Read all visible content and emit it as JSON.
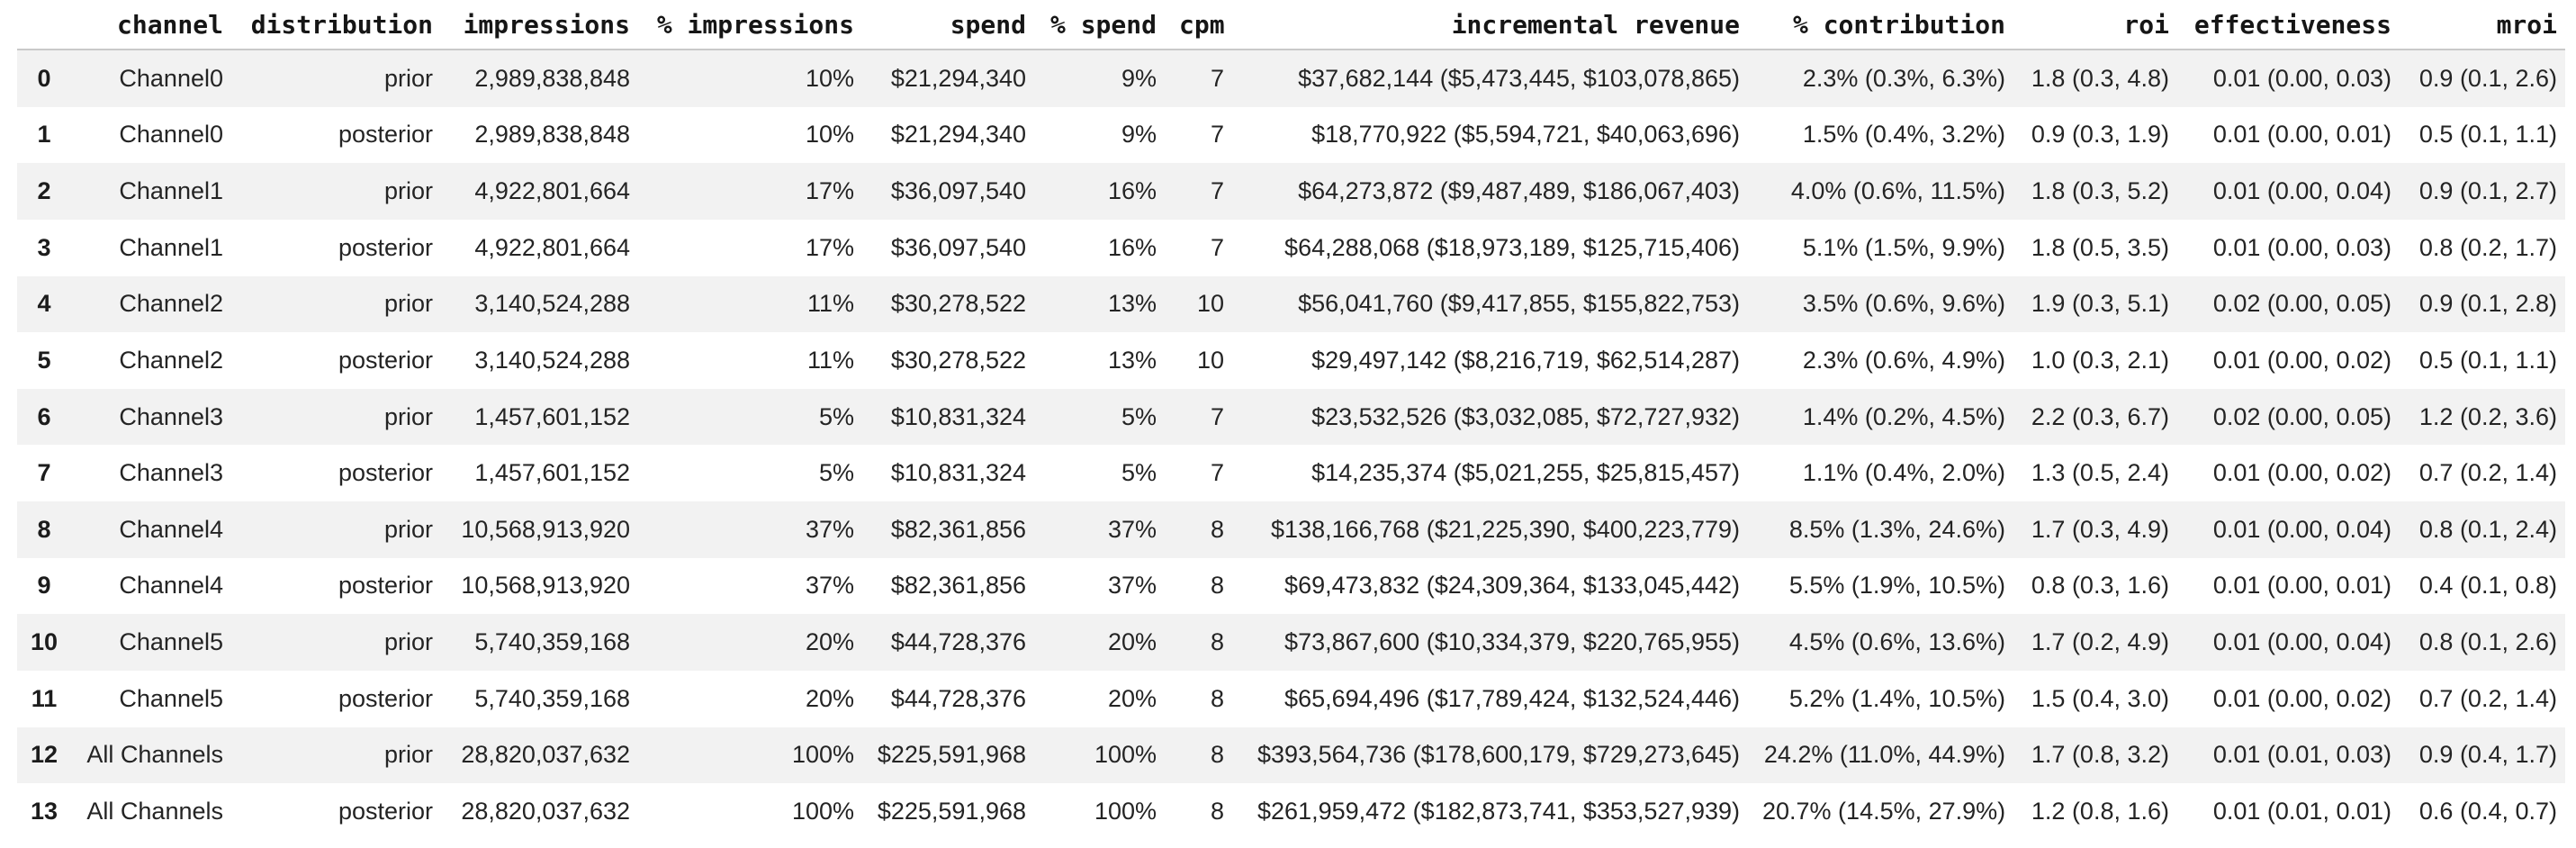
{
  "table": {
    "index_header": "",
    "columns": [
      {
        "key": "channel",
        "label": "channel"
      },
      {
        "key": "distribution",
        "label": "distribution"
      },
      {
        "key": "impressions",
        "label": "impressions"
      },
      {
        "key": "pct-impressions",
        "label": "% impressions"
      },
      {
        "key": "spend",
        "label": "spend"
      },
      {
        "key": "pct-spend",
        "label": "% spend"
      },
      {
        "key": "cpm",
        "label": "cpm"
      },
      {
        "key": "incremental-revenue",
        "label": "incremental revenue"
      },
      {
        "key": "pct-contribution",
        "label": "% contribution"
      },
      {
        "key": "roi",
        "label": "roi"
      },
      {
        "key": "effectiveness",
        "label": "effectiveness"
      },
      {
        "key": "mroi",
        "label": "mroi"
      }
    ],
    "rows": [
      [
        "0",
        "Channel0",
        "prior",
        "2,989,838,848",
        "10%",
        "$21,294,340",
        "9%",
        "7",
        "$37,682,144 ($5,473,445, $103,078,865)",
        "2.3% (0.3%, 6.3%)",
        "1.8 (0.3, 4.8)",
        "0.01 (0.00, 0.03)",
        "0.9 (0.1, 2.6)"
      ],
      [
        "1",
        "Channel0",
        "posterior",
        "2,989,838,848",
        "10%",
        "$21,294,340",
        "9%",
        "7",
        "$18,770,922 ($5,594,721, $40,063,696)",
        "1.5% (0.4%, 3.2%)",
        "0.9 (0.3, 1.9)",
        "0.01 (0.00, 0.01)",
        "0.5 (0.1, 1.1)"
      ],
      [
        "2",
        "Channel1",
        "prior",
        "4,922,801,664",
        "17%",
        "$36,097,540",
        "16%",
        "7",
        "$64,273,872 ($9,487,489, $186,067,403)",
        "4.0% (0.6%, 11.5%)",
        "1.8 (0.3, 5.2)",
        "0.01 (0.00, 0.04)",
        "0.9 (0.1, 2.7)"
      ],
      [
        "3",
        "Channel1",
        "posterior",
        "4,922,801,664",
        "17%",
        "$36,097,540",
        "16%",
        "7",
        "$64,288,068 ($18,973,189, $125,715,406)",
        "5.1% (1.5%, 9.9%)",
        "1.8 (0.5, 3.5)",
        "0.01 (0.00, 0.03)",
        "0.8 (0.2, 1.7)"
      ],
      [
        "4",
        "Channel2",
        "prior",
        "3,140,524,288",
        "11%",
        "$30,278,522",
        "13%",
        "10",
        "$56,041,760 ($9,417,855, $155,822,753)",
        "3.5% (0.6%, 9.6%)",
        "1.9 (0.3, 5.1)",
        "0.02 (0.00, 0.05)",
        "0.9 (0.1, 2.8)"
      ],
      [
        "5",
        "Channel2",
        "posterior",
        "3,140,524,288",
        "11%",
        "$30,278,522",
        "13%",
        "10",
        "$29,497,142 ($8,216,719, $62,514,287)",
        "2.3% (0.6%, 4.9%)",
        "1.0 (0.3, 2.1)",
        "0.01 (0.00, 0.02)",
        "0.5 (0.1, 1.1)"
      ],
      [
        "6",
        "Channel3",
        "prior",
        "1,457,601,152",
        "5%",
        "$10,831,324",
        "5%",
        "7",
        "$23,532,526 ($3,032,085, $72,727,932)",
        "1.4% (0.2%, 4.5%)",
        "2.2 (0.3, 6.7)",
        "0.02 (0.00, 0.05)",
        "1.2 (0.2, 3.6)"
      ],
      [
        "7",
        "Channel3",
        "posterior",
        "1,457,601,152",
        "5%",
        "$10,831,324",
        "5%",
        "7",
        "$14,235,374 ($5,021,255, $25,815,457)",
        "1.1% (0.4%, 2.0%)",
        "1.3 (0.5, 2.4)",
        "0.01 (0.00, 0.02)",
        "0.7 (0.2, 1.4)"
      ],
      [
        "8",
        "Channel4",
        "prior",
        "10,568,913,920",
        "37%",
        "$82,361,856",
        "37%",
        "8",
        "$138,166,768 ($21,225,390, $400,223,779)",
        "8.5% (1.3%, 24.6%)",
        "1.7 (0.3, 4.9)",
        "0.01 (0.00, 0.04)",
        "0.8 (0.1, 2.4)"
      ],
      [
        "9",
        "Channel4",
        "posterior",
        "10,568,913,920",
        "37%",
        "$82,361,856",
        "37%",
        "8",
        "$69,473,832 ($24,309,364, $133,045,442)",
        "5.5% (1.9%, 10.5%)",
        "0.8 (0.3, 1.6)",
        "0.01 (0.00, 0.01)",
        "0.4 (0.1, 0.8)"
      ],
      [
        "10",
        "Channel5",
        "prior",
        "5,740,359,168",
        "20%",
        "$44,728,376",
        "20%",
        "8",
        "$73,867,600 ($10,334,379, $220,765,955)",
        "4.5% (0.6%, 13.6%)",
        "1.7 (0.2, 4.9)",
        "0.01 (0.00, 0.04)",
        "0.8 (0.1, 2.6)"
      ],
      [
        "11",
        "Channel5",
        "posterior",
        "5,740,359,168",
        "20%",
        "$44,728,376",
        "20%",
        "8",
        "$65,694,496 ($17,789,424, $132,524,446)",
        "5.2% (1.4%, 10.5%)",
        "1.5 (0.4, 3.0)",
        "0.01 (0.00, 0.02)",
        "0.7 (0.2, 1.4)"
      ],
      [
        "12",
        "All Channels",
        "prior",
        "28,820,037,632",
        "100%",
        "$225,591,968",
        "100%",
        "8",
        "$393,564,736 ($178,600,179, $729,273,645)",
        "24.2% (11.0%, 44.9%)",
        "1.7 (0.8, 3.2)",
        "0.01 (0.01, 0.03)",
        "0.9 (0.4, 1.7)"
      ],
      [
        "13",
        "All Channels",
        "posterior",
        "28,820,037,632",
        "100%",
        "$225,591,968",
        "100%",
        "8",
        "$261,959,472 ($182,873,741, $353,527,939)",
        "20.7% (14.5%, 27.9%)",
        "1.2 (0.8, 1.6)",
        "0.01 (0.01, 0.01)",
        "0.6 (0.4, 0.7)"
      ]
    ]
  },
  "colors": {
    "row_stripe": "#f2f2f2",
    "header_rule": "#c9c9c9",
    "body_text": "#242424",
    "header_text": "#161616"
  }
}
